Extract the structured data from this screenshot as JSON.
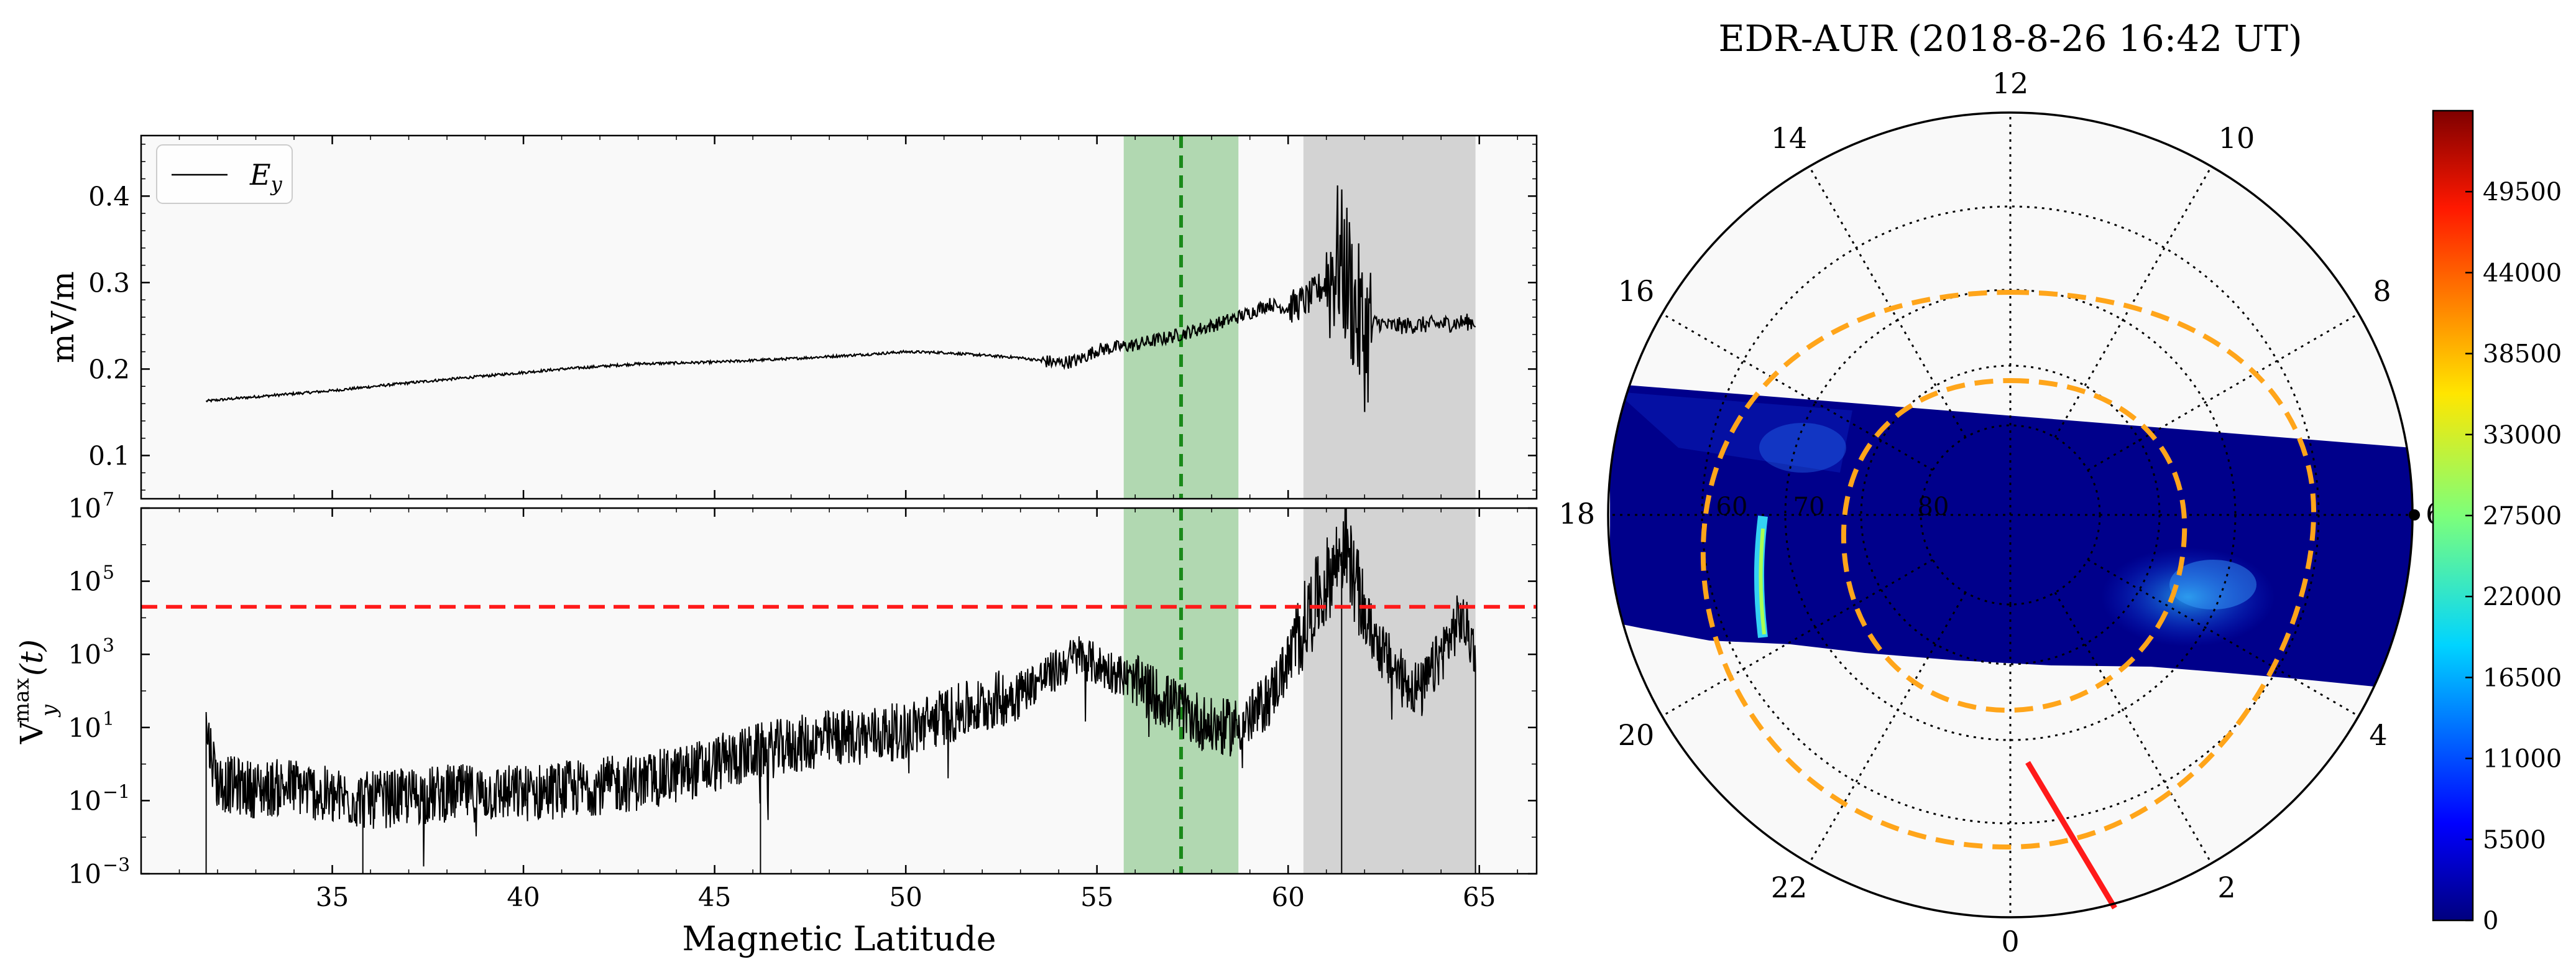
{
  "chart_data": [
    {
      "id": "ey",
      "type": "line",
      "panel": "top",
      "ylabel": "mV/m",
      "xlim": [
        30,
        66.5
      ],
      "ylim": [
        0.05,
        0.47
      ],
      "yticks": [
        0.1,
        0.2,
        0.3,
        0.4
      ],
      "ytick_labels": [
        "0.1",
        "0.2",
        "0.3",
        "0.4"
      ],
      "legend": {
        "label": "E",
        "subscript": "y",
        "placement": "top-left"
      },
      "shaded_regions": [
        {
          "x0": 55.7,
          "x1": 58.7,
          "color": "#b1d8b1"
        },
        {
          "x0": 60.4,
          "x1": 64.9,
          "color": "#d3d3d3"
        }
      ],
      "vline": {
        "x": 57.2,
        "color": "#1a8a1a",
        "style": "dashed"
      },
      "series": [
        {
          "name": "E_y",
          "x": [
            31.7,
            33,
            35,
            37,
            39,
            41,
            43,
            45,
            47,
            49,
            50,
            51,
            52,
            53,
            54,
            54.5,
            55,
            55.5,
            56,
            57,
            58,
            59,
            59.5,
            60,
            60.5,
            61,
            61.3,
            61.6,
            61.8,
            62,
            62.3,
            62.6,
            63,
            64,
            64.9
          ],
          "y": [
            0.163,
            0.168,
            0.175,
            0.184,
            0.192,
            0.2,
            0.206,
            0.208,
            0.212,
            0.217,
            0.22,
            0.219,
            0.216,
            0.213,
            0.207,
            0.21,
            0.222,
            0.225,
            0.228,
            0.238,
            0.25,
            0.265,
            0.275,
            0.27,
            0.28,
            0.3,
            0.33,
            0.3,
            0.26,
            0.24,
            0.255,
            0.25,
            0.25,
            0.252,
            0.255
          ]
        }
      ]
    },
    {
      "id": "vy",
      "type": "line",
      "panel": "bottom",
      "yscale": "log",
      "ylabel": "V",
      "ylabel_sub": "y",
      "ylabel_sup": "max",
      "ylabel_tail": "(t)",
      "xlabel": "Magnetic Latitude",
      "xlim": [
        30,
        66.5
      ],
      "ylim_log10": [
        -3,
        7
      ],
      "yticks_log10": [
        -3,
        -1,
        1,
        3,
        5,
        7
      ],
      "ytick_labels": [
        "10",
        "10",
        "10",
        "10",
        "10",
        "10"
      ],
      "ytick_exponents": [
        "−3",
        "−1",
        "1",
        "3",
        "5",
        "7"
      ],
      "xticks": [
        35,
        40,
        45,
        50,
        55,
        60,
        65
      ],
      "xtick_labels": [
        "35",
        "40",
        "45",
        "50",
        "55",
        "60",
        "65"
      ],
      "hline": {
        "y": 20000,
        "color": "#ff1a1a",
        "style": "dashed"
      },
      "shaded_regions": [
        {
          "x0": 55.7,
          "x1": 58.7,
          "color": "#b1d8b1"
        },
        {
          "x0": 60.4,
          "x1": 64.9,
          "color": "#d3d3d3"
        }
      ],
      "vline": {
        "x": 57.2,
        "color": "#1a8a1a",
        "style": "dashed"
      },
      "series": [
        {
          "name": "Vy_max",
          "x": [
            31.7,
            32,
            33,
            34,
            35,
            36,
            37,
            38,
            39,
            40,
            41,
            42,
            43,
            44,
            45,
            46,
            47,
            48,
            49,
            50,
            51,
            52,
            53,
            54,
            54.5,
            55,
            55.5,
            56,
            57,
            58,
            58.5,
            59,
            59.5,
            60,
            60.5,
            61,
            61.5,
            62,
            62.5,
            63,
            63.5,
            64,
            64.5,
            64.9
          ],
          "y_log10": [
            1.0,
            -0.5,
            -0.7,
            -0.6,
            -0.9,
            -1.0,
            -0.9,
            -0.8,
            -0.8,
            -0.8,
            -0.7,
            -0.6,
            -0.5,
            -0.3,
            0.0,
            0.3,
            0.5,
            0.7,
            0.8,
            0.9,
            1.3,
            1.6,
            2.0,
            2.6,
            3.0,
            2.7,
            2.5,
            2.2,
            1.6,
            1.0,
            1.0,
            1.2,
            1.8,
            2.8,
            4.0,
            5.0,
            6.0,
            4.0,
            3.0,
            2.3,
            2.0,
            3.0,
            4.0,
            3.2
          ]
        }
      ]
    },
    {
      "id": "polar",
      "type": "heatmap",
      "title": "EDR-AUR (2018-8-26 16:42 UT)",
      "projection": "polar",
      "mlt_labels": [
        "12",
        "14",
        "10",
        "16",
        "8",
        "18",
        "6",
        "20",
        "4",
        "22",
        "2",
        "0"
      ],
      "latitude_ring_labels": [
        "60",
        "70",
        "80"
      ],
      "colorbar": {
        "min": 0,
        "max": 55000,
        "ticks": [
          0,
          5500,
          11000,
          16500,
          22000,
          27500,
          33000,
          38500,
          44000,
          49500
        ],
        "tick_labels": [
          "0",
          "5500",
          "11000",
          "16500",
          "22000",
          "27500",
          "33000",
          "38500",
          "44000",
          "49500"
        ],
        "colormap": "jet"
      },
      "overlays": [
        {
          "name": "outer-oval",
          "color": "#ffa51a",
          "style": "dashed"
        },
        {
          "name": "inner-oval",
          "color": "#ffa51a",
          "style": "dashed"
        },
        {
          "name": "satellite-track",
          "color": "#ff1a1a",
          "style": "solid"
        }
      ]
    }
  ]
}
